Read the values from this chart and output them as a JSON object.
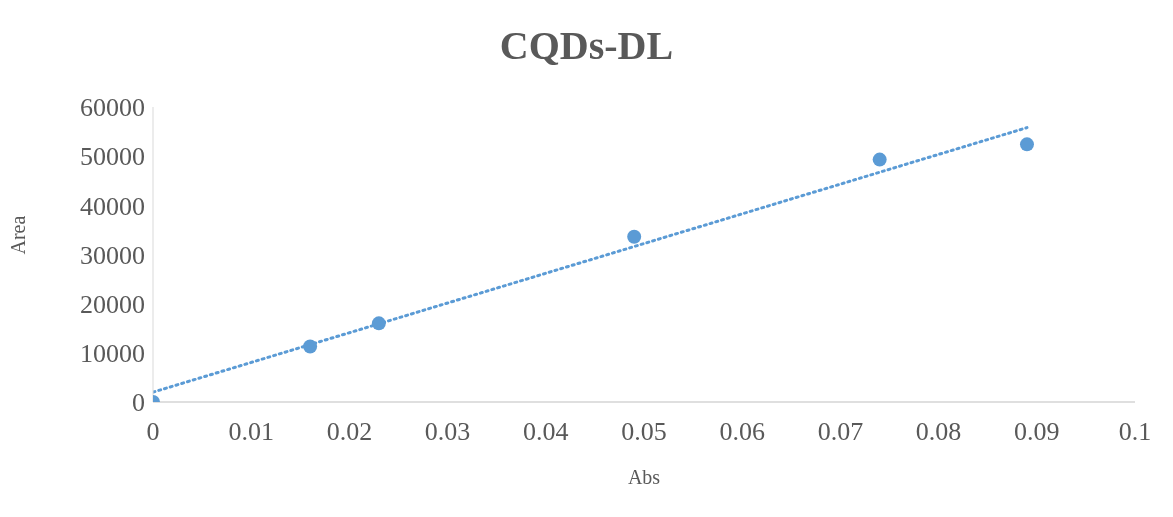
{
  "chart_data": {
    "type": "scatter",
    "title": "CQDs-DL",
    "xlabel": "Abs",
    "ylabel": "Area",
    "xlim": [
      0,
      0.1
    ],
    "xticks": [
      0,
      0.01,
      0.02,
      0.03,
      0.04,
      0.05,
      0.06,
      0.07,
      0.08,
      0.09,
      0.1
    ],
    "ylim": [
      0,
      60000
    ],
    "yticks": [
      0,
      10000,
      20000,
      30000,
      40000,
      50000,
      60000
    ],
    "grid": false,
    "series": [
      {
        "color": "#5b9bd5",
        "marker": "circle",
        "x": [
          0,
          0.016,
          0.023,
          0.049,
          0.074,
          0.089
        ],
        "values": [
          0,
          11300,
          16000,
          33600,
          49300,
          52400
        ]
      },
      {
        "type": "line",
        "color": "#5b9bd5",
        "marker": "none",
        "line_style": "dotted",
        "x": [
          0,
          0.089
        ],
        "values": [
          2000,
          55800
        ]
      }
    ]
  }
}
